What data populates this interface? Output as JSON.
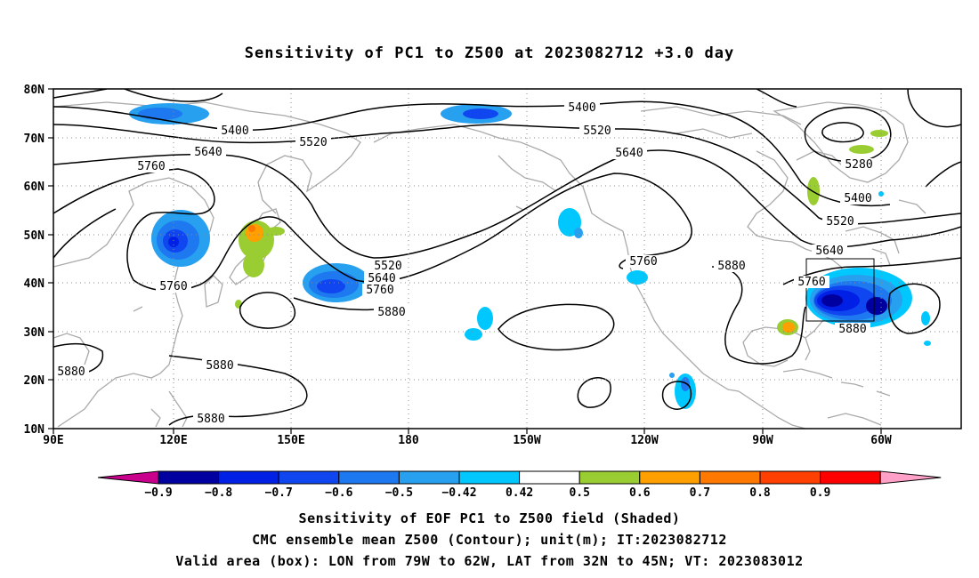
{
  "title": "Sensitivity of PC1 to Z500 at 2023082712 +3.0 day",
  "map": {
    "lat_labels": [
      "80N",
      "70N",
      "60N",
      "50N",
      "40N",
      "30N",
      "20N",
      "10N"
    ],
    "lon_labels": [
      "90E",
      "120E",
      "150E",
      "180",
      "150W",
      "120W",
      "90W",
      "60W"
    ],
    "contour_labels": [
      {
        "text": "5400",
        "name": "contour-label-5400-a"
      },
      {
        "text": "5400",
        "name": "contour-label-5400-b"
      },
      {
        "text": "5400",
        "name": "contour-label-5400-c"
      },
      {
        "text": "5520",
        "name": "contour-label-5520-a"
      },
      {
        "text": "5520",
        "name": "contour-label-5520-b"
      },
      {
        "text": "5520",
        "name": "contour-label-5520-c"
      },
      {
        "text": "5520",
        "name": "contour-label-5520-d"
      },
      {
        "text": "5640",
        "name": "contour-label-5640-a"
      },
      {
        "text": "5640",
        "name": "contour-label-5640-b"
      },
      {
        "text": "5640",
        "name": "contour-label-5640-c"
      },
      {
        "text": "5640",
        "name": "contour-label-5640-d"
      },
      {
        "text": "5760",
        "name": "contour-label-5760-a"
      },
      {
        "text": "5760",
        "name": "contour-label-5760-b"
      },
      {
        "text": "5760",
        "name": "contour-label-5760-c"
      },
      {
        "text": "5760",
        "name": "contour-label-5760-d"
      },
      {
        "text": "5760",
        "name": "contour-label-5760-e"
      },
      {
        "text": "5880",
        "name": "contour-label-5880-a"
      },
      {
        "text": "5880",
        "name": "contour-label-5880-b"
      },
      {
        "text": "5880",
        "name": "contour-label-5880-c"
      },
      {
        "text": "5880",
        "name": "contour-label-5880-d"
      },
      {
        "text": "5880",
        "name": "contour-label-5880-e"
      },
      {
        "text": "5880",
        "name": "contour-label-5880-f"
      },
      {
        "text": "5280",
        "name": "contour-label-5280"
      }
    ],
    "valid_box": {
      "lon_from": "79W",
      "lon_to": "62W",
      "lat_from": "32N",
      "lat_to": "45N"
    }
  },
  "colorbar": {
    "labels": [
      "-0.9",
      "-0.8",
      "-0.7",
      "-0.6",
      "-0.5",
      "-0.42",
      "0.42",
      "0.5",
      "0.6",
      "0.7",
      "0.8",
      "0.9"
    ],
    "colors": [
      "#c8008c",
      "#0000a0",
      "#0020e6",
      "#1046f0",
      "#1e78f0",
      "#28a0f0",
      "#00c8ff",
      "#ffffff",
      "#9acd32",
      "#ffa000",
      "#ff7800",
      "#ff4000",
      "#ff0000",
      "#ffa0c8"
    ]
  },
  "captions": {
    "line1": "Sensitivity of EOF PC1 to Z500 field (Shaded)",
    "line2": "CMC ensemble mean Z500 (Contour); unit(m); IT:2023082712",
    "line3": "Valid area (box): LON from 79W to 62W, LAT from 32N to 45N; VT: 2023083012"
  }
}
